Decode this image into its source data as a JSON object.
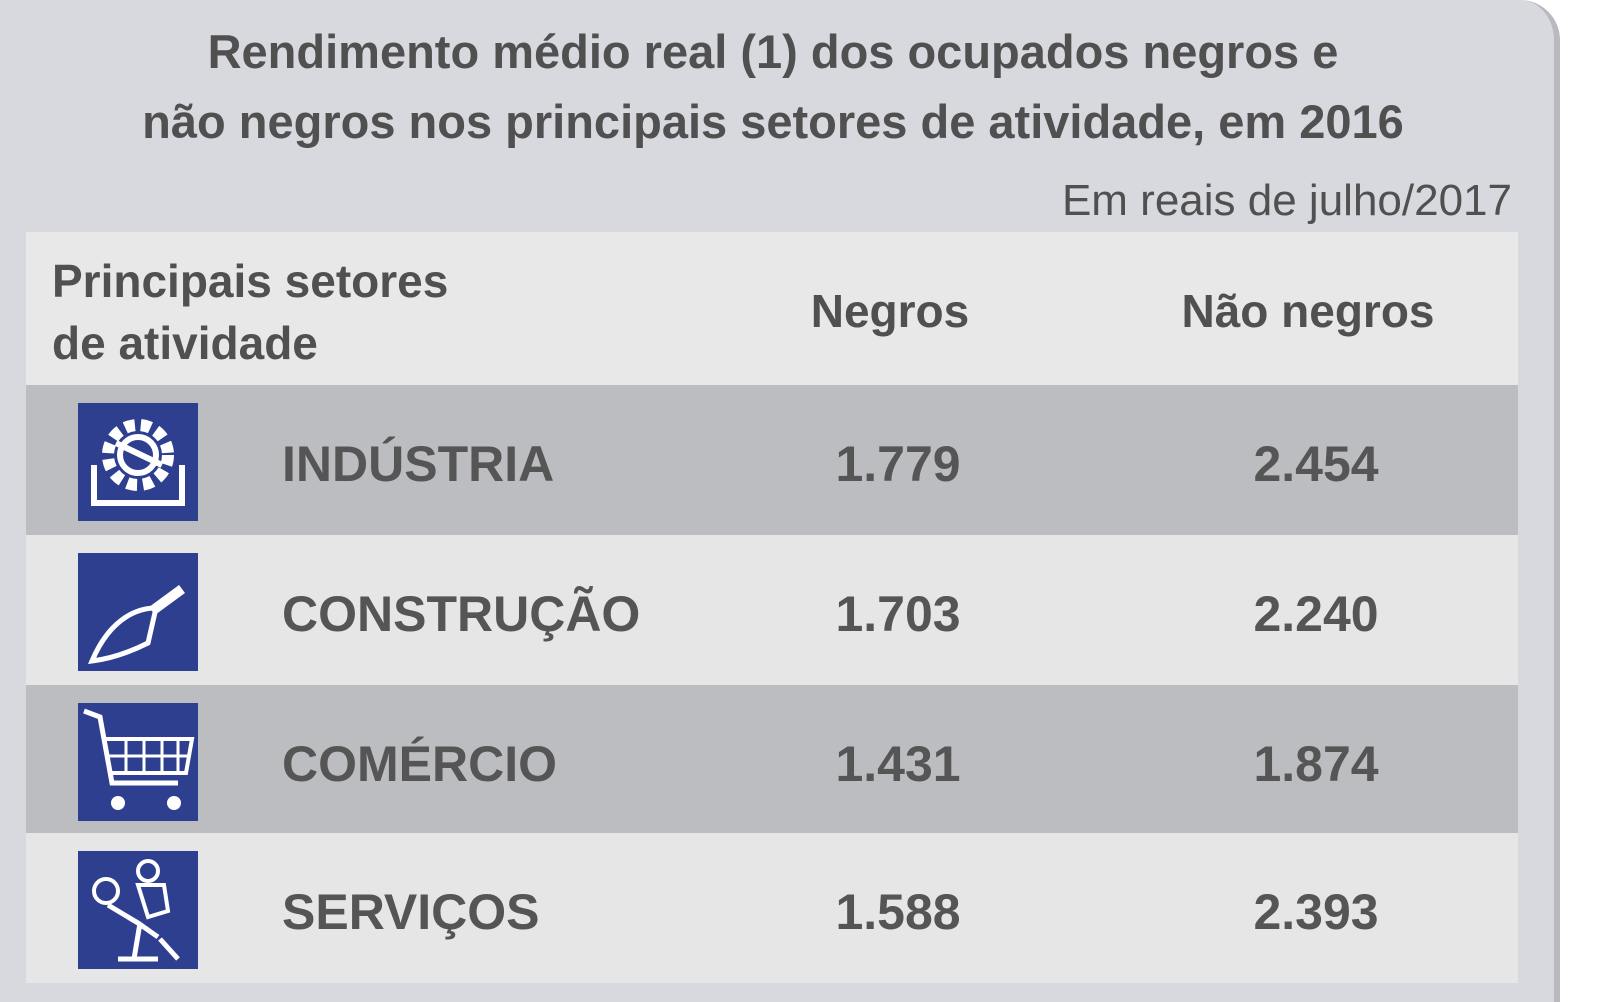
{
  "title_lines": [
    "Rendimento médio real (1) dos ocupados negros e",
    "não negros nos principais setores de atividade, em 2016"
  ],
  "unit_note": "Em reais de julho/2017",
  "table": {
    "header": {
      "sector_lines": [
        "Principais setores",
        "de atividade"
      ],
      "col1": "Negros",
      "col2": "Não negros"
    },
    "rows": [
      [
        "INDÚSTRIA",
        "1.779",
        "2.454"
      ],
      [
        "CONSTRUÇÃO",
        "1.703",
        "2.240"
      ],
      [
        "COMÉRCIO",
        "1.431",
        "1.874"
      ],
      [
        "SERVIÇOS",
        "1.588",
        "2.393"
      ]
    ]
  }
}
